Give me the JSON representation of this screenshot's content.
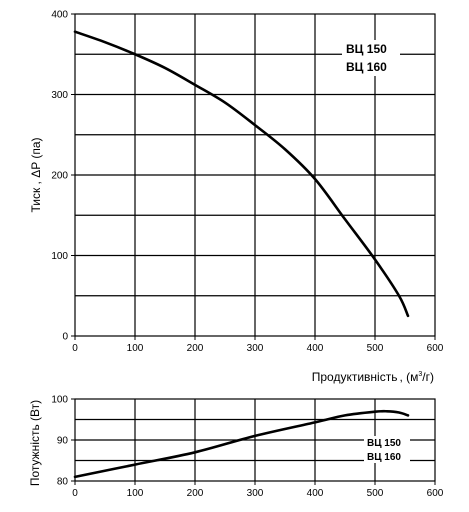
{
  "chart_data": [
    {
      "type": "line",
      "ylabel": "Тиск , ΔP (па)",
      "xlabel": "Продуктивність",
      "xlabel_unit_prefix": ", (м",
      "xlabel_unit_sup": "3",
      "xlabel_unit_suffix": "/г)",
      "xlim": [
        0,
        600
      ],
      "ylim": [
        0,
        400
      ],
      "xticks": [
        "0",
        "100",
        "200",
        "300",
        "400",
        "500",
        "600"
      ],
      "yticks": [
        "0",
        "100",
        "200",
        "300",
        "400"
      ],
      "grid": true,
      "labels": [
        "ВЦ 150",
        "ВЦ 160"
      ],
      "series": [
        {
          "x": [
            0,
            50,
            100,
            150,
            200,
            250,
            300,
            350,
            400,
            450,
            500,
            540,
            555
          ],
          "y": [
            378,
            365,
            350,
            333,
            312,
            290,
            262,
            232,
            195,
            145,
            95,
            50,
            25
          ]
        }
      ]
    },
    {
      "type": "line",
      "ylabel": "Потужність (Вт)",
      "xlim": [
        0,
        600
      ],
      "ylim": [
        80,
        100
      ],
      "xticks": [
        "0",
        "100",
        "200",
        "300",
        "400",
        "500",
        "600"
      ],
      "yticks": [
        "80",
        "90",
        "100"
      ],
      "grid": true,
      "labels": [
        "ВЦ 150",
        "ВЦ 160"
      ],
      "series": [
        {
          "x": [
            0,
            100,
            200,
            300,
            400,
            450,
            500,
            520,
            540,
            555
          ],
          "y": [
            81,
            84,
            87,
            91,
            94.3,
            96,
            96.9,
            97,
            96.7,
            96
          ]
        }
      ]
    }
  ],
  "colors": {
    "line": "#000000",
    "grid": "#000000",
    "background": "#ffffff"
  }
}
